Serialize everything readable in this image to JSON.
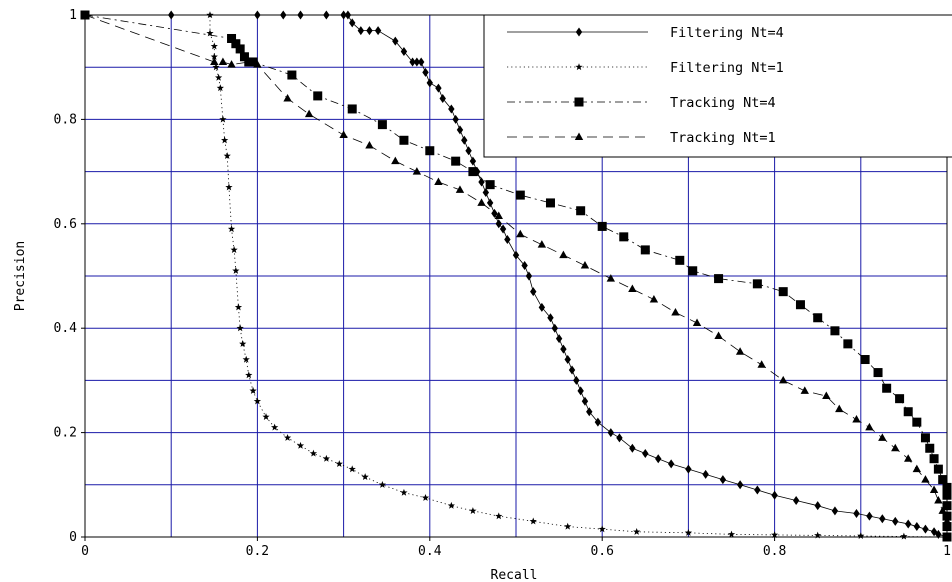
{
  "chart_data": {
    "type": "line",
    "title": "",
    "xlabel": "Recall",
    "ylabel": "Precision",
    "xlim": [
      0,
      1
    ],
    "ylim": [
      0,
      1
    ],
    "grid": true,
    "legend_position": "top-right",
    "x_ticks": [
      "0",
      "0.2",
      "0.4",
      "0.6",
      "0.8",
      "1"
    ],
    "y_ticks": [
      "0",
      "0.2",
      "0.4",
      "0.6",
      "0.8",
      "1"
    ],
    "series": [
      {
        "name": "Filtering Nt=4",
        "color": "#000000",
        "line_style": "solid",
        "marker": "diamond",
        "points": [
          [
            0,
            1
          ],
          [
            0.1,
            1
          ],
          [
            0.2,
            1
          ],
          [
            0.23,
            1
          ],
          [
            0.25,
            1
          ],
          [
            0.28,
            1
          ],
          [
            0.3,
            1
          ],
          [
            0.305,
            1
          ],
          [
            0.31,
            0.985
          ],
          [
            0.32,
            0.97
          ],
          [
            0.33,
            0.97
          ],
          [
            0.34,
            0.97
          ],
          [
            0.36,
            0.95
          ],
          [
            0.37,
            0.93
          ],
          [
            0.38,
            0.91
          ],
          [
            0.385,
            0.91
          ],
          [
            0.39,
            0.91
          ],
          [
            0.395,
            0.89
          ],
          [
            0.4,
            0.87
          ],
          [
            0.41,
            0.86
          ],
          [
            0.415,
            0.84
          ],
          [
            0.425,
            0.82
          ],
          [
            0.43,
            0.8
          ],
          [
            0.435,
            0.78
          ],
          [
            0.44,
            0.76
          ],
          [
            0.445,
            0.74
          ],
          [
            0.45,
            0.72
          ],
          [
            0.455,
            0.7
          ],
          [
            0.46,
            0.68
          ],
          [
            0.465,
            0.66
          ],
          [
            0.47,
            0.64
          ],
          [
            0.475,
            0.62
          ],
          [
            0.48,
            0.6
          ],
          [
            0.485,
            0.59
          ],
          [
            0.49,
            0.57
          ],
          [
            0.5,
            0.54
          ],
          [
            0.51,
            0.52
          ],
          [
            0.515,
            0.5
          ],
          [
            0.52,
            0.47
          ],
          [
            0.53,
            0.44
          ],
          [
            0.54,
            0.42
          ],
          [
            0.545,
            0.4
          ],
          [
            0.55,
            0.38
          ],
          [
            0.555,
            0.36
          ],
          [
            0.56,
            0.34
          ],
          [
            0.565,
            0.32
          ],
          [
            0.57,
            0.3
          ],
          [
            0.575,
            0.28
          ],
          [
            0.58,
            0.26
          ],
          [
            0.585,
            0.24
          ],
          [
            0.595,
            0.22
          ],
          [
            0.61,
            0.2
          ],
          [
            0.62,
            0.19
          ],
          [
            0.635,
            0.17
          ],
          [
            0.65,
            0.16
          ],
          [
            0.665,
            0.15
          ],
          [
            0.68,
            0.14
          ],
          [
            0.7,
            0.13
          ],
          [
            0.72,
            0.12
          ],
          [
            0.74,
            0.11
          ],
          [
            0.76,
            0.1
          ],
          [
            0.78,
            0.09
          ],
          [
            0.8,
            0.08
          ],
          [
            0.825,
            0.07
          ],
          [
            0.85,
            0.06
          ],
          [
            0.87,
            0.05
          ],
          [
            0.895,
            0.045
          ],
          [
            0.91,
            0.04
          ],
          [
            0.925,
            0.035
          ],
          [
            0.94,
            0.03
          ],
          [
            0.955,
            0.025
          ],
          [
            0.965,
            0.02
          ],
          [
            0.975,
            0.015
          ],
          [
            0.985,
            0.01
          ],
          [
            0.99,
            0.005
          ],
          [
            1.0,
            0.0
          ]
        ]
      },
      {
        "name": "Filtering Nt=1",
        "color": "#000000",
        "line_style": "dotted",
        "marker": "star",
        "points": [
          [
            0,
            1
          ],
          [
            0.145,
            1
          ],
          [
            0.145,
            0.965
          ],
          [
            0.15,
            0.94
          ],
          [
            0.15,
            0.92
          ],
          [
            0.152,
            0.9
          ],
          [
            0.155,
            0.88
          ],
          [
            0.157,
            0.86
          ],
          [
            0.16,
            0.8
          ],
          [
            0.162,
            0.76
          ],
          [
            0.165,
            0.73
          ],
          [
            0.167,
            0.67
          ],
          [
            0.17,
            0.59
          ],
          [
            0.173,
            0.55
          ],
          [
            0.175,
            0.51
          ],
          [
            0.178,
            0.44
          ],
          [
            0.18,
            0.4
          ],
          [
            0.183,
            0.37
          ],
          [
            0.187,
            0.34
          ],
          [
            0.19,
            0.31
          ],
          [
            0.195,
            0.28
          ],
          [
            0.2,
            0.26
          ],
          [
            0.21,
            0.23
          ],
          [
            0.22,
            0.21
          ],
          [
            0.235,
            0.19
          ],
          [
            0.25,
            0.175
          ],
          [
            0.265,
            0.16
          ],
          [
            0.28,
            0.15
          ],
          [
            0.295,
            0.14
          ],
          [
            0.31,
            0.13
          ],
          [
            0.325,
            0.115
          ],
          [
            0.345,
            0.1
          ],
          [
            0.37,
            0.085
          ],
          [
            0.395,
            0.075
          ],
          [
            0.425,
            0.06
          ],
          [
            0.45,
            0.05
          ],
          [
            0.48,
            0.04
          ],
          [
            0.52,
            0.03
          ],
          [
            0.56,
            0.02
          ],
          [
            0.6,
            0.015
          ],
          [
            0.64,
            0.01
          ],
          [
            0.7,
            0.008
          ],
          [
            0.75,
            0.005
          ],
          [
            0.8,
            0.004
          ],
          [
            0.85,
            0.003
          ],
          [
            0.9,
            0.002
          ],
          [
            0.95,
            0.001
          ],
          [
            1.0,
            0.0
          ]
        ]
      },
      {
        "name": "Tracking Nt=4",
        "color": "#000000",
        "line_style": "dashdot",
        "marker": "square",
        "points": [
          [
            0,
            1
          ],
          [
            0.17,
            0.955
          ],
          [
            0.175,
            0.945
          ],
          [
            0.18,
            0.935
          ],
          [
            0.185,
            0.92
          ],
          [
            0.19,
            0.91
          ],
          [
            0.195,
            0.91
          ],
          [
            0.24,
            0.885
          ],
          [
            0.27,
            0.845
          ],
          [
            0.31,
            0.82
          ],
          [
            0.345,
            0.79
          ],
          [
            0.37,
            0.76
          ],
          [
            0.4,
            0.74
          ],
          [
            0.43,
            0.72
          ],
          [
            0.45,
            0.7
          ],
          [
            0.47,
            0.675
          ],
          [
            0.505,
            0.655
          ],
          [
            0.54,
            0.64
          ],
          [
            0.575,
            0.625
          ],
          [
            0.6,
            0.595
          ],
          [
            0.625,
            0.575
          ],
          [
            0.65,
            0.55
          ],
          [
            0.69,
            0.53
          ],
          [
            0.705,
            0.51
          ],
          [
            0.735,
            0.495
          ],
          [
            0.78,
            0.485
          ],
          [
            0.81,
            0.47
          ],
          [
            0.83,
            0.445
          ],
          [
            0.85,
            0.42
          ],
          [
            0.87,
            0.395
          ],
          [
            0.885,
            0.37
          ],
          [
            0.905,
            0.34
          ],
          [
            0.92,
            0.315
          ],
          [
            0.93,
            0.285
          ],
          [
            0.945,
            0.265
          ],
          [
            0.955,
            0.24
          ],
          [
            0.965,
            0.22
          ],
          [
            0.975,
            0.19
          ],
          [
            0.98,
            0.17
          ],
          [
            0.985,
            0.15
          ],
          [
            0.99,
            0.13
          ],
          [
            0.995,
            0.11
          ],
          [
            1.0,
            0.095
          ],
          [
            1.0,
            0.08
          ],
          [
            1.0,
            0.06
          ],
          [
            1.0,
            0.04
          ],
          [
            1.0,
            0.02
          ],
          [
            1.0,
            0.0
          ]
        ]
      },
      {
        "name": "Tracking Nt=1",
        "color": "#000000",
        "line_style": "dashed",
        "marker": "triangle",
        "points": [
          [
            0,
            1
          ],
          [
            0.15,
            0.91
          ],
          [
            0.16,
            0.91
          ],
          [
            0.17,
            0.905
          ],
          [
            0.19,
            0.91
          ],
          [
            0.2,
            0.905
          ],
          [
            0.235,
            0.84
          ],
          [
            0.26,
            0.81
          ],
          [
            0.3,
            0.77
          ],
          [
            0.33,
            0.75
          ],
          [
            0.36,
            0.72
          ],
          [
            0.385,
            0.7
          ],
          [
            0.41,
            0.68
          ],
          [
            0.435,
            0.665
          ],
          [
            0.46,
            0.64
          ],
          [
            0.48,
            0.615
          ],
          [
            0.505,
            0.58
          ],
          [
            0.53,
            0.56
          ],
          [
            0.555,
            0.54
          ],
          [
            0.58,
            0.52
          ],
          [
            0.61,
            0.495
          ],
          [
            0.635,
            0.475
          ],
          [
            0.66,
            0.455
          ],
          [
            0.685,
            0.43
          ],
          [
            0.71,
            0.41
          ],
          [
            0.735,
            0.385
          ],
          [
            0.76,
            0.355
          ],
          [
            0.785,
            0.33
          ],
          [
            0.81,
            0.3
          ],
          [
            0.835,
            0.28
          ],
          [
            0.86,
            0.27
          ],
          [
            0.875,
            0.245
          ],
          [
            0.895,
            0.225
          ],
          [
            0.91,
            0.21
          ],
          [
            0.925,
            0.19
          ],
          [
            0.94,
            0.17
          ],
          [
            0.955,
            0.15
          ],
          [
            0.965,
            0.13
          ],
          [
            0.975,
            0.11
          ],
          [
            0.985,
            0.09
          ],
          [
            0.99,
            0.07
          ],
          [
            0.995,
            0.05
          ],
          [
            1.0,
            0.03
          ],
          [
            1.0,
            0.0
          ]
        ]
      }
    ]
  }
}
